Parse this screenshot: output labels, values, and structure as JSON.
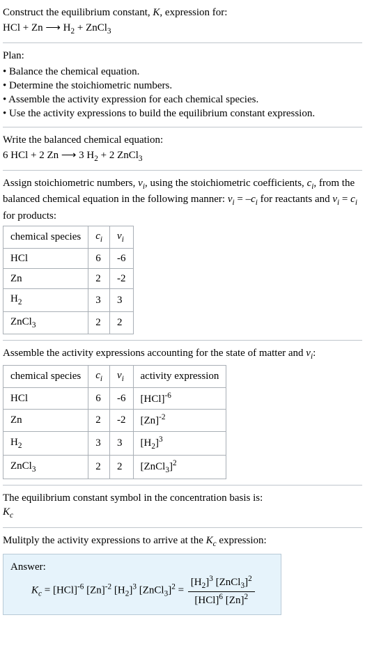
{
  "intro": {
    "line1_a": "Construct the equilibrium constant, ",
    "line1_b": ", expression for:",
    "equation_lhs": "HCl + Zn",
    "equation_arrow": "⟶",
    "equation_rhs_a": "H",
    "equation_rhs_b": " + ZnCl",
    "equation_sub1": "2",
    "equation_sub2": "3",
    "K": "K"
  },
  "plan": {
    "heading": "Plan:",
    "items": [
      "• Balance the chemical equation.",
      "• Determine the stoichiometric numbers.",
      "• Assemble the activity expression for each chemical species.",
      "• Use the activity expressions to build the equilibrium constant expression."
    ]
  },
  "balanced": {
    "intro": "Write the balanced chemical equation:",
    "lhs": "6 HCl + 2 Zn",
    "arrow": "⟶",
    "rhs_a": "3 H",
    "rhs_sub1": "2",
    "rhs_b": " + 2 ZnCl",
    "rhs_sub2": "3"
  },
  "stoich": {
    "intro_a": "Assign stoichiometric numbers, ",
    "nu": "ν",
    "i": "i",
    "intro_b": ", using the stoichiometric coefficients, ",
    "c": "c",
    "intro_c": ", from the balanced chemical equation in the following manner: ",
    "rel1_a": " = –",
    "rel1_b": " for reactants and ",
    "rel2_a": " = ",
    "rel2_b": " for products:",
    "headers": {
      "species": "chemical species",
      "c": "c",
      "nu": "ν"
    },
    "rows": [
      {
        "species": "HCl",
        "c": "6",
        "nu": "-6"
      },
      {
        "species": "Zn",
        "c": "2",
        "nu": "-2"
      },
      {
        "species_a": "H",
        "species_sub": "2",
        "c": "3",
        "nu": "3"
      },
      {
        "species_a": "ZnCl",
        "species_sub": "3",
        "c": "2",
        "nu": "2"
      }
    ]
  },
  "activity": {
    "intro_a": "Assemble the activity expressions accounting for the state of matter and ",
    "intro_b": ":",
    "headers": {
      "species": "chemical species",
      "c": "c",
      "nu": "ν",
      "act": "activity expression"
    },
    "rows": [
      {
        "species": "HCl",
        "c": "6",
        "nu": "-6",
        "base": "[HCl]",
        "exp": "-6"
      },
      {
        "species": "Zn",
        "c": "2",
        "nu": "-2",
        "base": "[Zn]",
        "exp": "-2"
      },
      {
        "species_a": "H",
        "species_sub": "2",
        "c": "3",
        "nu": "3",
        "base_a": "[H",
        "base_sub": "2",
        "base_b": "]",
        "exp": "3"
      },
      {
        "species_a": "ZnCl",
        "species_sub": "3",
        "c": "2",
        "nu": "2",
        "base_a": "[ZnCl",
        "base_sub": "3",
        "base_b": "]",
        "exp": "2"
      }
    ]
  },
  "kc_symbol": {
    "intro": "The equilibrium constant symbol in the concentration basis is:",
    "K": "K",
    "c": "c"
  },
  "multiply": {
    "intro_a": "Mulitply the activity expressions to arrive at the ",
    "intro_b": " expression:",
    "K": "K",
    "c": "c"
  },
  "answer": {
    "label": "Answer:",
    "K": "K",
    "c": "c",
    "eq": " = ",
    "t1_base": "[HCl]",
    "t1_exp": "-6",
    "t2_base": "[Zn]",
    "t2_exp": "-2",
    "t3_base_a": "[H",
    "t3_sub": "2",
    "t3_base_b": "]",
    "t3_exp": "3",
    "t4_base_a": "[ZnCl",
    "t4_sub": "3",
    "t4_base_b": "]",
    "t4_exp": "2",
    "eq2": " = ",
    "num_t1_a": "[H",
    "num_t1_sub": "2",
    "num_t1_b": "]",
    "num_t1_exp": "3",
    "num_t2_a": "[ZnCl",
    "num_t2_sub": "3",
    "num_t2_b": "]",
    "num_t2_exp": "2",
    "den_t1": "[HCl]",
    "den_t1_exp": "6",
    "den_t2": "[Zn]",
    "den_t2_exp": "2"
  }
}
